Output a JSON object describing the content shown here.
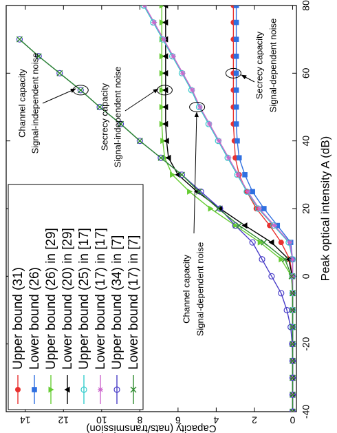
{
  "chart_data": {
    "type": "line",
    "xlabel": "Peak optical intensity A (dB)",
    "ylabel": "Capacity (nats/transmission)",
    "x": [
      -40,
      -35,
      -30,
      -25,
      -20,
      -15,
      -10,
      -5,
      0,
      5,
      10,
      15,
      20,
      25,
      30,
      35,
      40,
      45,
      50,
      55,
      60,
      65,
      70,
      75,
      80
    ],
    "xlim": [
      -40,
      80
    ],
    "xticks": [
      -40,
      -20,
      0,
      20,
      40,
      60,
      80
    ],
    "ylim": [
      -0.2,
      15
    ],
    "yticks": [
      0,
      2,
      4,
      6,
      8,
      10,
      12,
      14
    ],
    "legend": "top-left",
    "series": [
      {
        "name": "Upper bound (31)",
        "color": "#e8312f",
        "marker": "circle",
        "values": [
          0,
          0,
          0,
          0,
          0,
          0,
          0,
          0,
          0.02,
          0.15,
          0.6,
          1.2,
          1.9,
          2.4,
          2.8,
          3.0,
          3.05,
          3.1,
          3.1,
          3.1,
          3.1,
          3.1,
          3.1,
          3.1,
          3.1
        ]
      },
      {
        "name": "Lower bound (26)",
        "color": "#2f6fe0",
        "marker": "square",
        "values": [
          0,
          0,
          0,
          0,
          0,
          0,
          0,
          0,
          0,
          0,
          0.1,
          0.8,
          1.5,
          2.1,
          2.5,
          2.8,
          2.9,
          2.95,
          2.95,
          2.95,
          2.95,
          2.95,
          2.95,
          2.95,
          2.95
        ]
      },
      {
        "name": "Upper bound (26) in [29]",
        "color": "#66cc33",
        "marker": "tri-down",
        "values": [
          0,
          0,
          0,
          0,
          0,
          0,
          0,
          0,
          0.05,
          0.6,
          1.7,
          3.0,
          4.3,
          5.4,
          6.3,
          6.7,
          6.8,
          6.85,
          6.85,
          6.85,
          6.85,
          6.85,
          6.85,
          6.85,
          6.85
        ]
      },
      {
        "name": "Lower bound (20) in [29]",
        "color": "#000000",
        "marker": "tri-up",
        "values": [
          0,
          0,
          0,
          0,
          0,
          0,
          0,
          0,
          0.02,
          0.2,
          1.1,
          2.5,
          3.8,
          5.0,
          6.0,
          6.5,
          6.6,
          6.65,
          6.65,
          6.65,
          6.65,
          6.65,
          6.65,
          6.65,
          6.65
        ]
      },
      {
        "name": "Upper bound (25) in [17]",
        "color": "#33cccc",
        "marker": "open-circle",
        "values": [
          0,
          0,
          0,
          0,
          0,
          0,
          0,
          0,
          0,
          0,
          0.2,
          1.0,
          1.8,
          2.4,
          2.9,
          3.4,
          3.9,
          4.4,
          4.9,
          5.3,
          5.8,
          6.3,
          6.8,
          7.3,
          7.8
        ]
      },
      {
        "name": "Lower bound (17) in [17]",
        "color": "#cc66cc",
        "marker": "star",
        "values": [
          0,
          0,
          0,
          0,
          0,
          0,
          0,
          0,
          0,
          0,
          0.15,
          0.95,
          1.75,
          2.35,
          2.85,
          3.35,
          3.85,
          4.35,
          4.85,
          5.25,
          5.75,
          6.25,
          6.75,
          7.25,
          7.75
        ]
      },
      {
        "name": "Upper bound (34) in [7]",
        "color": "#4a3ec8",
        "marker": "open-circle",
        "values": [
          0,
          0,
          0,
          0,
          0.02,
          0.1,
          0.3,
          0.6,
          1.1,
          1.6,
          2.1,
          3.0,
          3.8,
          4.8,
          5.8,
          6.9,
          8.0,
          9.0,
          10.1,
          11.1,
          12.2,
          13.3,
          14.3,
          null,
          null
        ]
      },
      {
        "name": "Lower bound (17) in [7]",
        "color": "#2e8b2e",
        "marker": "x",
        "values": [
          0,
          0,
          0,
          0,
          0,
          0,
          0,
          0,
          0.05,
          0.4,
          1.5,
          2.8,
          3.9,
          4.9,
          5.8,
          6.9,
          8.0,
          9.0,
          10.1,
          11.1,
          12.2,
          13.3,
          14.3,
          null,
          null
        ]
      }
    ],
    "annotations": [
      {
        "lines": [
          "Channel capacity",
          "Signal-independent noise"
        ]
      },
      {
        "lines": [
          "Secrecy capacity",
          "Signal-independent noise"
        ]
      },
      {
        "lines": [
          "Channel capacity",
          "Signal-dependent noise"
        ]
      },
      {
        "lines": [
          "Secrecy capacity",
          "Signal-dependent noise"
        ]
      }
    ]
  }
}
